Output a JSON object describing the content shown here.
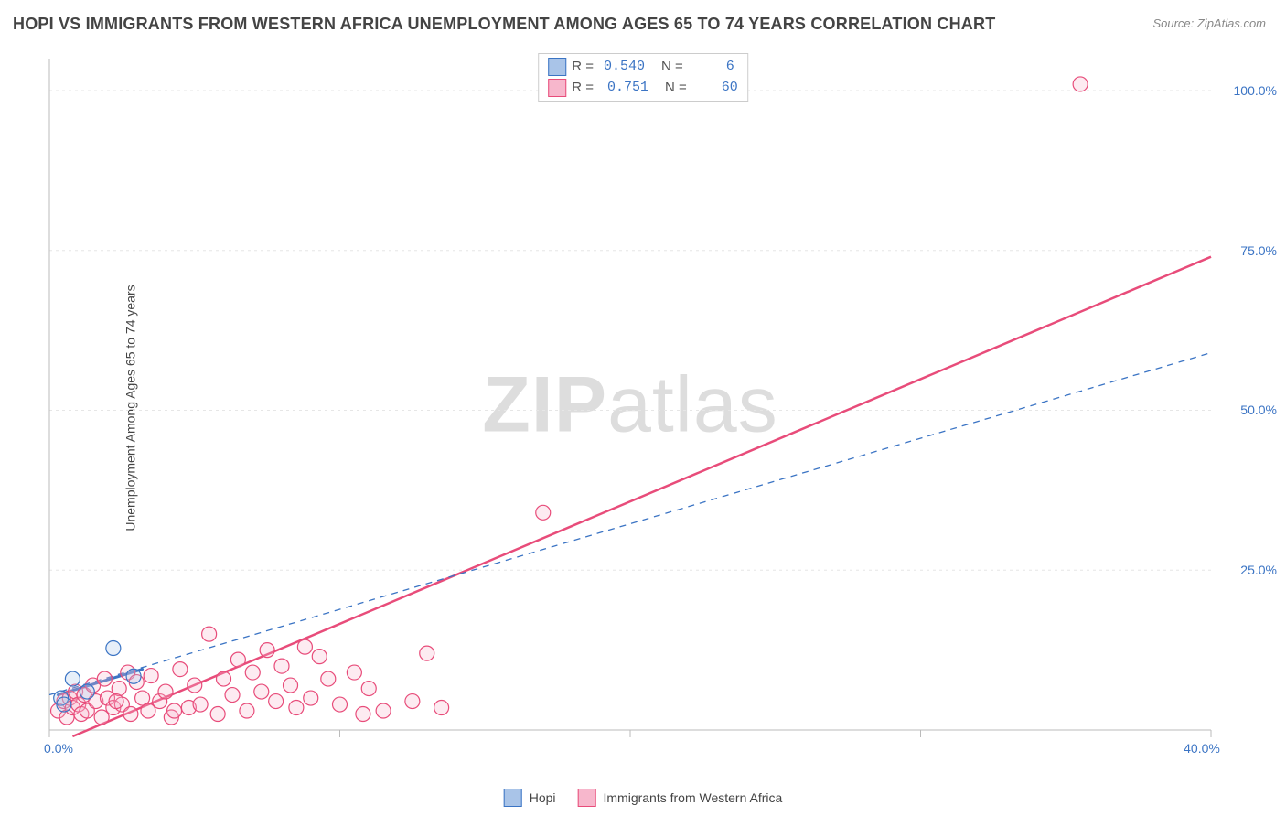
{
  "title": "HOPI VS IMMIGRANTS FROM WESTERN AFRICA UNEMPLOYMENT AMONG AGES 65 TO 74 YEARS CORRELATION CHART",
  "source": "Source: ZipAtlas.com",
  "ylabel": "Unemployment Among Ages 65 to 74 years",
  "watermark": {
    "bold": "ZIP",
    "light": "atlas"
  },
  "chart": {
    "type": "scatter-with-regression",
    "background_color": "#ffffff",
    "grid_color": "#e6e6e6",
    "grid_dash": "3,4",
    "axis_line_color": "#bbbbbb",
    "tick_color": "#bbbbbb",
    "xlim": [
      0,
      40
    ],
    "ylim": [
      0,
      105
    ],
    "xticks": [
      0,
      10,
      20,
      30,
      40
    ],
    "xtick_labels": [
      "0.0%",
      "",
      "",
      "",
      "40.0%"
    ],
    "yticks": [
      25,
      50,
      75,
      100
    ],
    "ytick_labels": [
      "25.0%",
      "50.0%",
      "75.0%",
      "100.0%"
    ],
    "marker_radius": 8,
    "marker_stroke_width": 1.2,
    "marker_fill_opacity": 0.28,
    "series": [
      {
        "name": "Hopi",
        "color_stroke": "#3b74c4",
        "color_fill": "#a9c4e8",
        "R": "0.540",
        "N": "6",
        "regression": {
          "x0": 0,
          "y0": 5.5,
          "x1": 40,
          "y1": 59,
          "dashed": true,
          "width": 1.3,
          "short_x0": 0.3,
          "short_y0": 5.5,
          "short_x1": 3.2,
          "short_y1": 9.5,
          "short_width": 3
        },
        "points": [
          [
            0.4,
            5.0
          ],
          [
            0.8,
            8.0
          ],
          [
            1.3,
            6.0
          ],
          [
            2.2,
            12.8
          ],
          [
            2.9,
            8.4
          ],
          [
            0.5,
            4.0
          ]
        ]
      },
      {
        "name": "Immigrants from Western Africa",
        "color_stroke": "#e84c7a",
        "color_fill": "#f7b7cc",
        "R": "0.751",
        "N": "60",
        "regression": {
          "x0": 0.8,
          "y0": -1,
          "x1": 40,
          "y1": 74,
          "dashed": false,
          "width": 2.5
        },
        "points": [
          [
            0.3,
            3.0
          ],
          [
            0.5,
            4.5
          ],
          [
            0.6,
            2.0
          ],
          [
            0.7,
            5.0
          ],
          [
            0.8,
            3.5
          ],
          [
            0.9,
            6.0
          ],
          [
            1.0,
            4.0
          ],
          [
            1.1,
            2.5
          ],
          [
            1.2,
            5.5
          ],
          [
            1.3,
            3.0
          ],
          [
            1.5,
            7.0
          ],
          [
            1.6,
            4.5
          ],
          [
            1.8,
            2.0
          ],
          [
            1.9,
            8.0
          ],
          [
            2.0,
            5.0
          ],
          [
            2.2,
            3.5
          ],
          [
            2.4,
            6.5
          ],
          [
            2.5,
            4.0
          ],
          [
            2.7,
            9.0
          ],
          [
            2.8,
            2.5
          ],
          [
            3.0,
            7.5
          ],
          [
            3.2,
            5.0
          ],
          [
            3.4,
            3.0
          ],
          [
            3.5,
            8.5
          ],
          [
            3.8,
            4.5
          ],
          [
            4.0,
            6.0
          ],
          [
            4.2,
            2.0
          ],
          [
            4.5,
            9.5
          ],
          [
            4.8,
            3.5
          ],
          [
            5.0,
            7.0
          ],
          [
            5.2,
            4.0
          ],
          [
            5.5,
            15.0
          ],
          [
            5.8,
            2.5
          ],
          [
            6.0,
            8.0
          ],
          [
            6.3,
            5.5
          ],
          [
            6.5,
            11.0
          ],
          [
            6.8,
            3.0
          ],
          [
            7.0,
            9.0
          ],
          [
            7.3,
            6.0
          ],
          [
            7.5,
            12.5
          ],
          [
            7.8,
            4.5
          ],
          [
            8.0,
            10.0
          ],
          [
            8.3,
            7.0
          ],
          [
            8.5,
            3.5
          ],
          [
            8.8,
            13.0
          ],
          [
            9.0,
            5.0
          ],
          [
            9.3,
            11.5
          ],
          [
            9.6,
            8.0
          ],
          [
            10.0,
            4.0
          ],
          [
            10.5,
            9.0
          ],
          [
            10.8,
            2.5
          ],
          [
            11.0,
            6.5
          ],
          [
            11.5,
            3.0
          ],
          [
            12.5,
            4.5
          ],
          [
            13.0,
            12.0
          ],
          [
            13.5,
            3.5
          ],
          [
            17.0,
            34.0
          ],
          [
            35.5,
            101.0
          ],
          [
            4.3,
            3.0
          ],
          [
            2.3,
            4.5
          ]
        ]
      }
    ]
  },
  "stats_legend": {
    "rows": [
      {
        "swatch_fill": "#a9c4e8",
        "swatch_stroke": "#3b74c4",
        "R_label": "R =",
        "R": "0.540",
        "N_label": "N =",
        "N": "  6"
      },
      {
        "swatch_fill": "#f7b7cc",
        "swatch_stroke": "#e84c7a",
        "R_label": "R =",
        "R": " 0.751",
        "N_label": "N =",
        "N": "60"
      }
    ]
  },
  "bottom_legend": {
    "items": [
      {
        "swatch_fill": "#a9c4e8",
        "swatch_stroke": "#3b74c4",
        "label": "Hopi"
      },
      {
        "swatch_fill": "#f7b7cc",
        "swatch_stroke": "#e84c7a",
        "label": "Immigrants from Western Africa"
      }
    ]
  }
}
